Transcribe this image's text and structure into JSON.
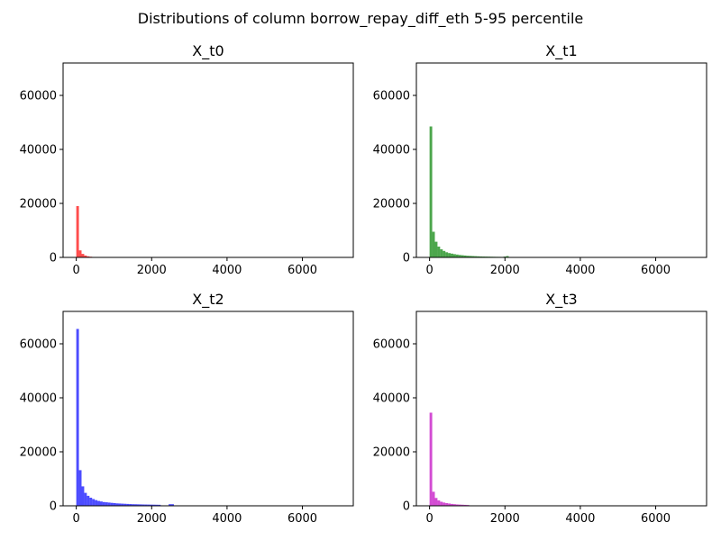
{
  "figure": {
    "suptitle": "Distributions of column borrow_repay_diff_eth 5-95 percentile"
  },
  "chart_data": [
    {
      "type": "bar",
      "title": "X_t0",
      "xlabel": "",
      "ylabel": "",
      "color": "#ff0000",
      "opacity": 0.7,
      "xlim": [
        -350,
        7350
      ],
      "ylim": [
        0,
        72000
      ],
      "xticks": [
        0,
        2000,
        4000,
        6000
      ],
      "yticks": [
        0,
        20000,
        40000,
        60000
      ],
      "bin_width": 70,
      "bin_starts": [
        0,
        70,
        140,
        210,
        280,
        350,
        420
      ],
      "counts": [
        19000,
        2600,
        1300,
        700,
        400,
        250,
        150
      ]
    },
    {
      "type": "bar",
      "title": "X_t1",
      "xlabel": "",
      "ylabel": "",
      "color": "#008000",
      "opacity": 0.7,
      "xlim": [
        -350,
        7350
      ],
      "ylim": [
        0,
        72000
      ],
      "xticks": [
        0,
        2000,
        4000,
        6000
      ],
      "yticks": [
        0,
        20000,
        40000,
        60000
      ],
      "bin_width": 70,
      "bin_starts": [
        0,
        70,
        140,
        210,
        280,
        350,
        420,
        490,
        560,
        630,
        700,
        770,
        840,
        910,
        980,
        1050,
        1120,
        1190,
        1260,
        1330,
        1400,
        1470,
        1540,
        1610,
        1680,
        1750,
        1820,
        1890,
        1960,
        2030
      ],
      "counts": [
        48500,
        9500,
        5800,
        4000,
        3000,
        2400,
        1900,
        1600,
        1400,
        1200,
        1050,
        900,
        800,
        700,
        600,
        550,
        500,
        450,
        400,
        350,
        320,
        300,
        280,
        250,
        230,
        210,
        200,
        180,
        300,
        500
      ]
    },
    {
      "type": "bar",
      "title": "X_t2",
      "xlabel": "",
      "ylabel": "",
      "color": "#0000ff",
      "opacity": 0.7,
      "xlim": [
        -350,
        7350
      ],
      "ylim": [
        0,
        72000
      ],
      "xticks": [
        0,
        2000,
        4000,
        6000
      ],
      "yticks": [
        0,
        20000,
        40000,
        60000
      ],
      "bin_width": 70,
      "bin_starts": [
        0,
        70,
        140,
        210,
        280,
        350,
        420,
        490,
        560,
        630,
        700,
        770,
        840,
        910,
        980,
        1050,
        1120,
        1190,
        1260,
        1330,
        1400,
        1470,
        1540,
        1610,
        1680,
        1750,
        1820,
        1890,
        1960,
        2030,
        2100,
        2170,
        2240,
        2310,
        2380,
        2450,
        2520,
        2590
      ],
      "counts": [
        65500,
        13200,
        7200,
        4800,
        3700,
        3000,
        2500,
        2100,
        1800,
        1600,
        1400,
        1300,
        1200,
        1100,
        1000,
        900,
        850,
        800,
        750,
        700,
        650,
        600,
        580,
        550,
        530,
        500,
        480,
        460,
        440,
        420,
        400,
        380,
        120,
        100,
        90,
        600,
        600,
        80
      ]
    },
    {
      "type": "bar",
      "title": "X_t3",
      "xlabel": "",
      "ylabel": "",
      "color": "#c000c0",
      "opacity": 0.7,
      "xlim": [
        -350,
        7350
      ],
      "ylim": [
        0,
        72000
      ],
      "xticks": [
        0,
        2000,
        4000,
        6000
      ],
      "yticks": [
        0,
        20000,
        40000,
        60000
      ],
      "bin_width": 70,
      "bin_starts": [
        0,
        70,
        140,
        210,
        280,
        350,
        420,
        490,
        560,
        630,
        700,
        770,
        840,
        910,
        980
      ],
      "counts": [
        34500,
        5200,
        2900,
        2000,
        1500,
        1200,
        1000,
        850,
        700,
        600,
        500,
        450,
        400,
        350,
        300
      ]
    }
  ]
}
